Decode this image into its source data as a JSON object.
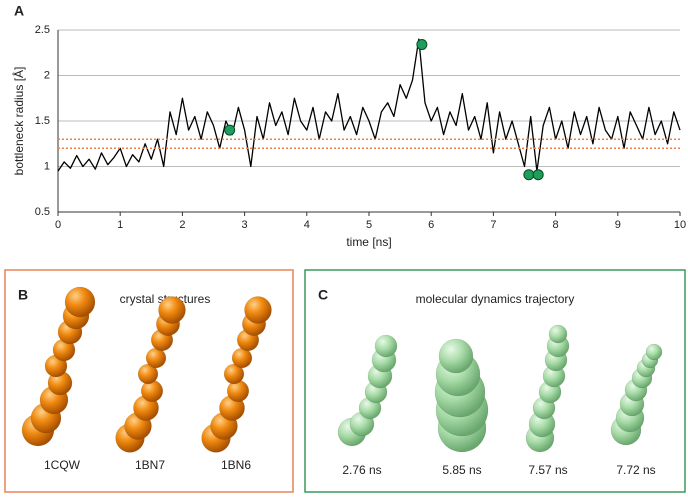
{
  "chart_data": {
    "type": "line",
    "panel_label": "A",
    "x_label": "time [ns]",
    "y_label": "bottleneck radius [Å]",
    "x": [
      0,
      0.1,
      0.2,
      0.3,
      0.4,
      0.5,
      0.6,
      0.7,
      0.8,
      0.9,
      1,
      1.1,
      1.2,
      1.3,
      1.4,
      1.5,
      1.6,
      1.7,
      1.8,
      1.9,
      2,
      2.1,
      2.2,
      2.3,
      2.4,
      2.5,
      2.6,
      2.7,
      2.8,
      2.9,
      3,
      3.1,
      3.2,
      3.3,
      3.4,
      3.5,
      3.6,
      3.7,
      3.8,
      3.9,
      4,
      4.1,
      4.2,
      4.3,
      4.4,
      4.5,
      4.6,
      4.7,
      4.8,
      4.9,
      5,
      5.1,
      5.2,
      5.3,
      5.4,
      5.5,
      5.6,
      5.7,
      5.8,
      5.9,
      6,
      6.1,
      6.2,
      6.3,
      6.4,
      6.5,
      6.6,
      6.7,
      6.8,
      6.9,
      7,
      7.1,
      7.2,
      7.3,
      7.4,
      7.5,
      7.6,
      7.7,
      7.8,
      7.9,
      8,
      8.1,
      8.2,
      8.3,
      8.4,
      8.5,
      8.6,
      8.7,
      8.8,
      8.9,
      9,
      9.1,
      9.2,
      9.3,
      9.4,
      9.5,
      9.6,
      9.7,
      9.8,
      9.9,
      10
    ],
    "series": [
      {
        "color": "#000000",
        "values": [
          0.95,
          1.05,
          0.98,
          1.12,
          1.0,
          1.08,
          0.97,
          1.15,
          1.02,
          1.1,
          1.2,
          1.0,
          1.13,
          1.05,
          1.25,
          1.08,
          1.3,
          1.0,
          1.6,
          1.35,
          1.75,
          1.4,
          1.55,
          1.3,
          1.6,
          1.45,
          1.2,
          1.5,
          1.35,
          1.65,
          1.4,
          1.0,
          1.55,
          1.3,
          1.7,
          1.45,
          1.6,
          1.35,
          1.75,
          1.5,
          1.4,
          1.65,
          1.3,
          1.6,
          1.5,
          1.8,
          1.4,
          1.55,
          1.35,
          1.65,
          1.5,
          1.3,
          1.6,
          1.7,
          1.55,
          1.9,
          1.75,
          1.95,
          2.4,
          1.7,
          1.5,
          1.65,
          1.35,
          1.6,
          1.45,
          1.8,
          1.4,
          1.55,
          1.3,
          1.7,
          1.15,
          1.6,
          1.3,
          1.5,
          1.25,
          1.0,
          1.55,
          0.95,
          1.45,
          1.65,
          1.3,
          1.5,
          1.2,
          1.6,
          1.35,
          1.55,
          1.25,
          1.65,
          1.4,
          1.3,
          1.55,
          1.2,
          1.6,
          1.45,
          1.3,
          1.65,
          1.35,
          1.5,
          1.25,
          1.6,
          1.4
        ]
      }
    ],
    "points": {
      "color": "#1e9e5a",
      "x": [
        2.76,
        5.85,
        7.57,
        7.72
      ],
      "values": [
        1.4,
        2.34,
        0.91,
        0.91
      ]
    },
    "reference_lines": {
      "color": "#f07f4f",
      "values": [
        1.2,
        1.3
      ]
    },
    "xlim": [
      0,
      10
    ],
    "xticks": [
      0,
      1,
      2,
      3,
      4,
      5,
      6,
      7,
      8,
      9,
      10
    ],
    "ylim": [
      0.5,
      2.5
    ],
    "yticks": [
      0.5,
      1,
      1.5,
      2,
      2.5
    ],
    "grid": true
  },
  "panel_b": {
    "label": "B",
    "title": "crystal structures",
    "items": [
      "1CQW",
      "1BN7",
      "1BN6"
    ]
  },
  "panel_c": {
    "label": "C",
    "title": "molecular dynamics trajectory",
    "items": [
      "2.76 ns",
      "5.85 ns",
      "7.57 ns",
      "7.72 ns"
    ]
  }
}
